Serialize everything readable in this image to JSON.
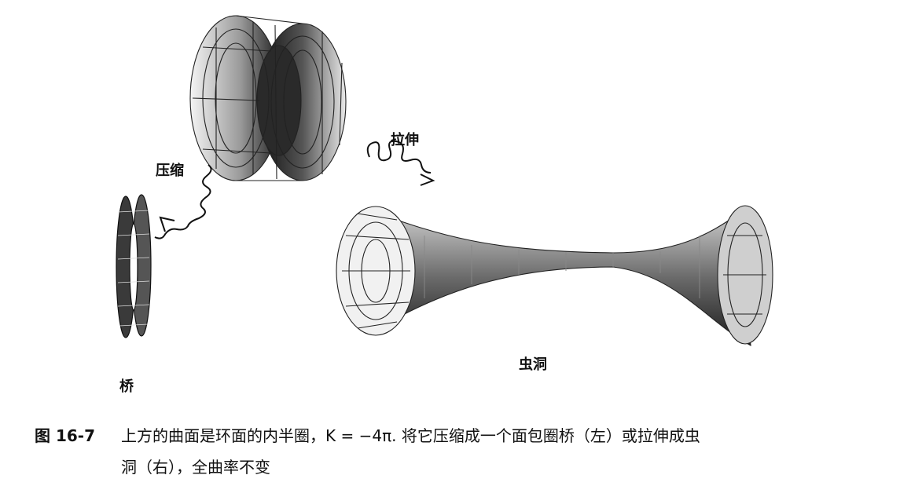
{
  "figure": {
    "labels": {
      "compress": "压缩",
      "stretch": "拉伸",
      "bridge": "桥",
      "wormhole": "虫洞"
    }
  },
  "caption": {
    "number": "图 16-7",
    "line1": "上方的曲面是环面的内半圈，K = −4π. 将它压缩成一个面包圈桥（左）或拉伸成虫",
    "line2": "洞（右），全曲率不变"
  }
}
